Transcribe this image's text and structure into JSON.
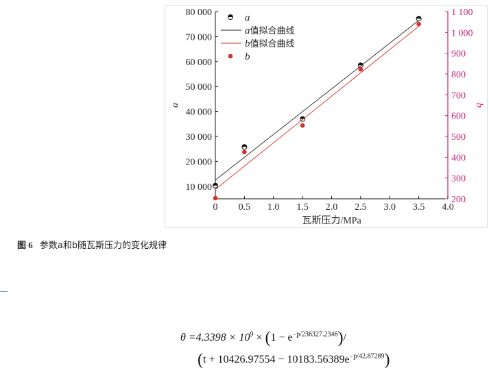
{
  "figure": {
    "caption_label": "图 6",
    "caption_text": "参数a和b随瓦斯压力的变化规律"
  },
  "chart_data": {
    "type": "scatter",
    "xlabel": "瓦斯压力/MPa",
    "ylabel_left": "a",
    "ylabel_right": "b",
    "xlim": [
      0,
      4.0
    ],
    "ylim_left": [
      5000,
      80000
    ],
    "ylim_right": [
      200,
      1100
    ],
    "x_ticks": [
      "0",
      "0.5",
      "1.0",
      "1.5",
      "2.0",
      "2.5",
      "3.0",
      "3.5",
      "4.0"
    ],
    "y_left_ticks": [
      "10 000",
      "20 000",
      "30 000",
      "40 000",
      "50 000",
      "60 000",
      "70 000",
      "80 000"
    ],
    "y_right_ticks": [
      "200",
      "300",
      "400",
      "500",
      "600",
      "700",
      "800",
      "900",
      "1 000",
      "1 100"
    ],
    "grid": false,
    "legend_position": "top-left",
    "series": [
      {
        "name": "a",
        "kind": "points",
        "axis": "left",
        "color": "#111111",
        "x": [
          0,
          0.5,
          1.5,
          2.5,
          3.5
        ],
        "y": [
          10300,
          25800,
          37000,
          58500,
          77200
        ]
      },
      {
        "name": "a值拟合曲线",
        "kind": "line",
        "axis": "left",
        "color": "#222222",
        "x": [
          0,
          3.5
        ],
        "y": [
          12500,
          76500
        ]
      },
      {
        "name": "b值拟合曲线",
        "kind": "line",
        "axis": "right",
        "color": "#d9302a",
        "x": [
          0,
          3.5
        ],
        "y": [
          245,
          1030
        ]
      },
      {
        "name": "b",
        "kind": "points",
        "axis": "right",
        "color": "#d9302a",
        "x": [
          0,
          0.5,
          1.5,
          2.5,
          3.5
        ],
        "y": [
          203,
          425,
          553,
          823,
          1040
        ]
      }
    ],
    "colors": {
      "right_axis": "#c8227a",
      "left_axis": "#111111"
    }
  },
  "formula": {
    "line1_lhs": "θ =4.3398 × 10",
    "line1_exp": "9",
    "line1_mid": " × ",
    "line1_inner": "1 − e",
    "line1_inner_exp": "−p/236327.2346",
    "line1_tail": "/",
    "line2_inner": "t + 10426.97554 − 10183.56389e",
    "line2_exp": "−p/42.87289"
  }
}
